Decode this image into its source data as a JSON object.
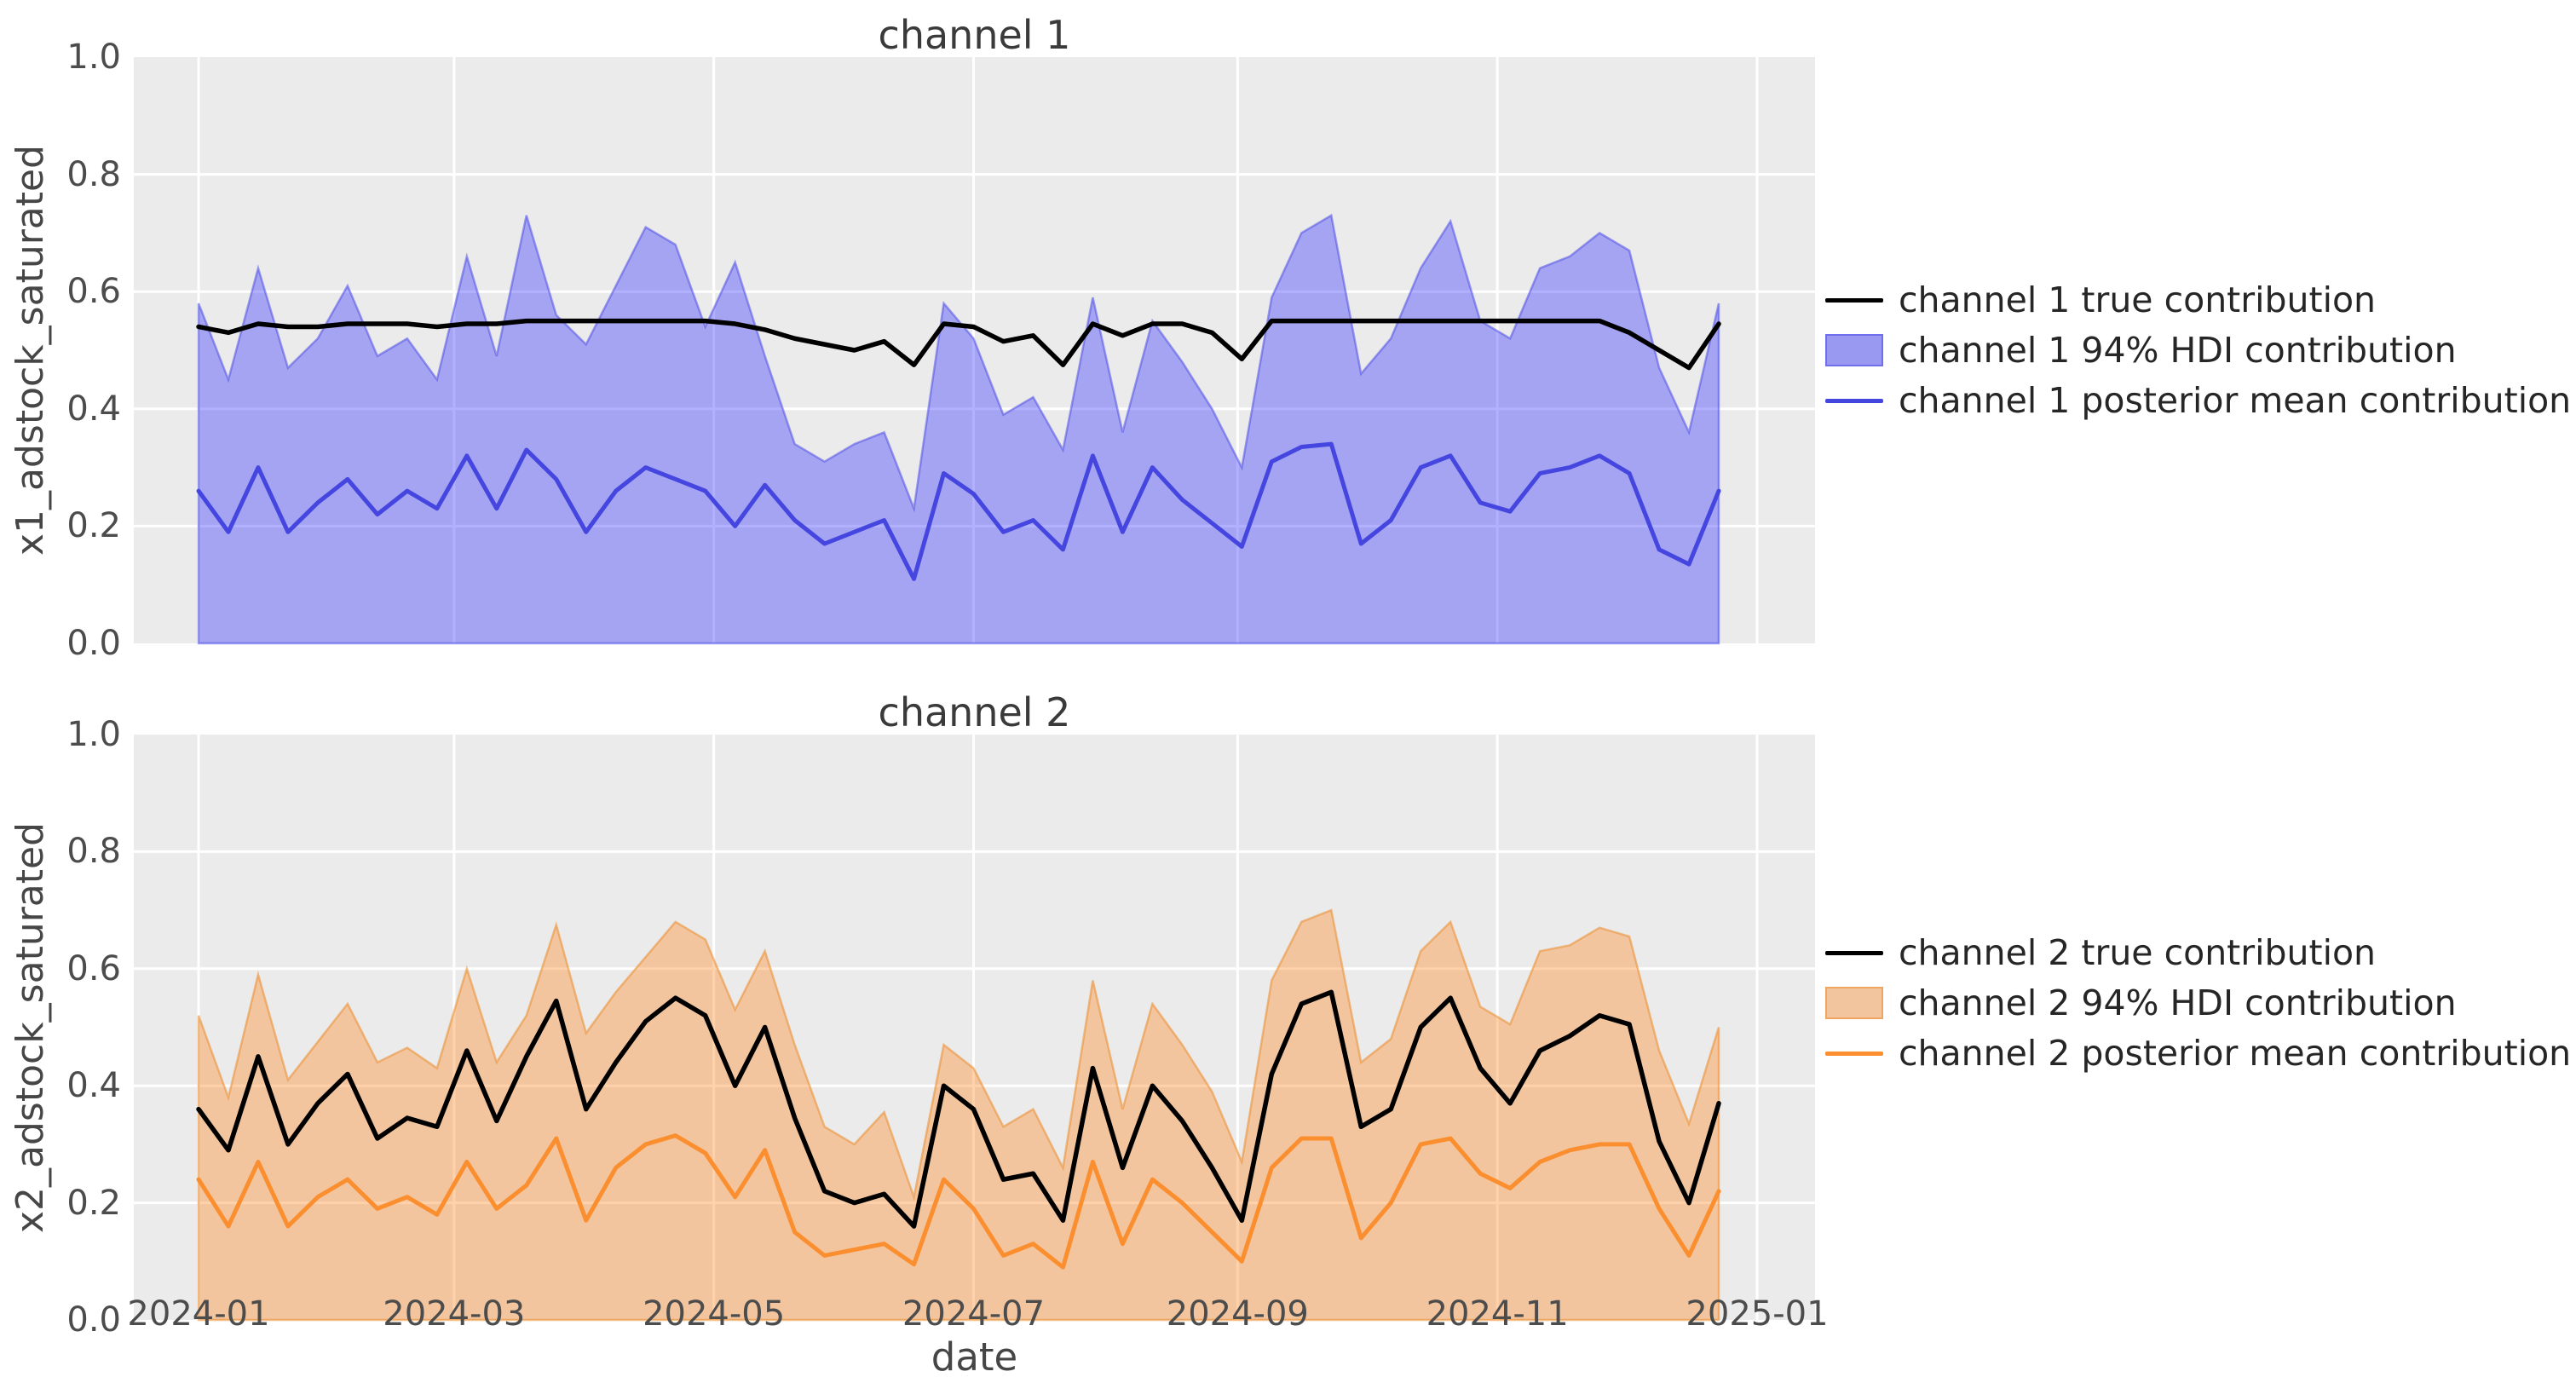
{
  "style": {
    "figure_background": "#ffffff",
    "plot_background": "#ebebeb",
    "grid_color": "#ffffff",
    "title_color": "#3a3a3a",
    "tick_color": "#4c4c4c"
  },
  "xlabel": "date",
  "x_tick_labels": [
    "2024-01",
    "2024-03",
    "2024-05",
    "2024-07",
    "2024-09",
    "2024-11",
    "2025-01"
  ],
  "y_tick_labels": [
    "0.0",
    "0.2",
    "0.4",
    "0.6",
    "0.8",
    "1.0"
  ],
  "charts": [
    {
      "title": "channel 1",
      "ylabel": "x1_adstock_saturated",
      "colors": {
        "true_line": "#000000",
        "band_base": "#1f1fff",
        "band_fill_apparent": "#9999f2",
        "band_edge": "rgba(70,70,230,0.5)",
        "mean_line": "#4545e0"
      },
      "legend": [
        {
          "label": "channel 1 true contribution",
          "type": "line"
        },
        {
          "label": "channel 1 94% HDI contribution",
          "type": "patch"
        },
        {
          "label": "channel 1 posterior mean contribution",
          "type": "line"
        }
      ]
    },
    {
      "title": "channel 2",
      "ylabel": "x2_adstock_saturated",
      "colors": {
        "true_line": "#000000",
        "band_base": "#ff7f0e",
        "band_fill_apparent": "#f2c59e",
        "band_edge": "rgba(235,140,45,0.55)",
        "mean_line": "#fb8e2e"
      },
      "legend": [
        {
          "label": "channel 2 true contribution",
          "type": "line"
        },
        {
          "label": "channel 2 94% HDI contribution",
          "type": "patch"
        },
        {
          "label": "channel 2 posterior mean contribution",
          "type": "line"
        }
      ]
    }
  ],
  "chart_data": [
    {
      "type": "area",
      "title": "channel 1",
      "xlabel": "date",
      "ylabel": "x1_adstock_saturated",
      "ylim": [
        0.0,
        1.0
      ],
      "grid": true,
      "legend_position": "right of axes",
      "x": [
        "2024-01-01",
        "2024-01-08",
        "2024-01-15",
        "2024-01-22",
        "2024-01-29",
        "2024-02-05",
        "2024-02-12",
        "2024-02-19",
        "2024-02-26",
        "2024-03-04",
        "2024-03-11",
        "2024-03-18",
        "2024-03-25",
        "2024-04-01",
        "2024-04-08",
        "2024-04-15",
        "2024-04-22",
        "2024-04-29",
        "2024-05-06",
        "2024-05-13",
        "2024-05-20",
        "2024-05-27",
        "2024-06-03",
        "2024-06-10",
        "2024-06-17",
        "2024-06-24",
        "2024-07-01",
        "2024-07-08",
        "2024-07-15",
        "2024-07-22",
        "2024-07-29",
        "2024-08-05",
        "2024-08-12",
        "2024-08-19",
        "2024-08-26",
        "2024-09-02",
        "2024-09-09",
        "2024-09-16",
        "2024-09-23",
        "2024-09-30",
        "2024-10-07",
        "2024-10-14",
        "2024-10-21",
        "2024-10-28",
        "2024-11-04",
        "2024-11-11",
        "2024-11-18",
        "2024-11-25",
        "2024-12-02",
        "2024-12-09",
        "2024-12-16",
        "2024-12-23"
      ],
      "series": [
        {
          "name": "channel 1 true contribution",
          "values": [
            0.54,
            0.53,
            0.545,
            0.54,
            0.54,
            0.545,
            0.545,
            0.545,
            0.54,
            0.545,
            0.545,
            0.55,
            0.55,
            0.55,
            0.55,
            0.55,
            0.55,
            0.55,
            0.545,
            0.535,
            0.52,
            0.51,
            0.5,
            0.515,
            0.475,
            0.545,
            0.54,
            0.515,
            0.525,
            0.475,
            0.545,
            0.525,
            0.545,
            0.545,
            0.53,
            0.485,
            0.55,
            0.55,
            0.55,
            0.55,
            0.55,
            0.55,
            0.55,
            0.55,
            0.55,
            0.55,
            0.55,
            0.55,
            0.53,
            0.5,
            0.47,
            0.545
          ]
        },
        {
          "name": "channel 1 94% HDI contribution upper bound",
          "values": [
            0.58,
            0.45,
            0.64,
            0.47,
            0.52,
            0.61,
            0.49,
            0.52,
            0.45,
            0.66,
            0.49,
            0.73,
            0.56,
            0.51,
            0.61,
            0.71,
            0.68,
            0.54,
            0.65,
            0.49,
            0.34,
            0.31,
            0.34,
            0.36,
            0.23,
            0.58,
            0.52,
            0.39,
            0.42,
            0.33,
            0.59,
            0.36,
            0.55,
            0.48,
            0.4,
            0.3,
            0.59,
            0.7,
            0.73,
            0.46,
            0.52,
            0.64,
            0.72,
            0.55,
            0.52,
            0.64,
            0.66,
            0.7,
            0.67,
            0.47,
            0.36,
            0.58
          ]
        },
        {
          "name": "channel 1 94% HDI contribution lower bound",
          "values_constant": 0.0
        },
        {
          "name": "channel 1 posterior mean contribution",
          "values": [
            0.26,
            0.19,
            0.3,
            0.19,
            0.24,
            0.28,
            0.22,
            0.26,
            0.23,
            0.32,
            0.23,
            0.33,
            0.28,
            0.19,
            0.26,
            0.3,
            0.28,
            0.26,
            0.2,
            0.27,
            0.21,
            0.17,
            0.19,
            0.21,
            0.11,
            0.29,
            0.255,
            0.19,
            0.21,
            0.16,
            0.32,
            0.19,
            0.3,
            0.245,
            0.205,
            0.165,
            0.31,
            0.335,
            0.34,
            0.17,
            0.21,
            0.3,
            0.32,
            0.24,
            0.225,
            0.29,
            0.3,
            0.32,
            0.29,
            0.16,
            0.135,
            0.26
          ]
        }
      ]
    },
    {
      "type": "area",
      "title": "channel 2",
      "xlabel": "date",
      "ylabel": "x2_adstock_saturated",
      "ylim": [
        0.0,
        1.0
      ],
      "grid": true,
      "legend_position": "right of axes",
      "x": [
        "2024-01-01",
        "2024-01-08",
        "2024-01-15",
        "2024-01-22",
        "2024-01-29",
        "2024-02-05",
        "2024-02-12",
        "2024-02-19",
        "2024-02-26",
        "2024-03-04",
        "2024-03-11",
        "2024-03-18",
        "2024-03-25",
        "2024-04-01",
        "2024-04-08",
        "2024-04-15",
        "2024-04-22",
        "2024-04-29",
        "2024-05-06",
        "2024-05-13",
        "2024-05-20",
        "2024-05-27",
        "2024-06-03",
        "2024-06-10",
        "2024-06-17",
        "2024-06-24",
        "2024-07-01",
        "2024-07-08",
        "2024-07-15",
        "2024-07-22",
        "2024-07-29",
        "2024-08-05",
        "2024-08-12",
        "2024-08-19",
        "2024-08-26",
        "2024-09-02",
        "2024-09-09",
        "2024-09-16",
        "2024-09-23",
        "2024-09-30",
        "2024-10-07",
        "2024-10-14",
        "2024-10-21",
        "2024-10-28",
        "2024-11-04",
        "2024-11-11",
        "2024-11-18",
        "2024-11-25",
        "2024-12-02",
        "2024-12-09",
        "2024-12-16",
        "2024-12-23"
      ],
      "series": [
        {
          "name": "channel 2 true contribution",
          "values": [
            0.36,
            0.29,
            0.45,
            0.3,
            0.37,
            0.42,
            0.31,
            0.345,
            0.33,
            0.46,
            0.34,
            0.45,
            0.545,
            0.36,
            0.44,
            0.51,
            0.55,
            0.52,
            0.4,
            0.5,
            0.345,
            0.22,
            0.2,
            0.215,
            0.16,
            0.4,
            0.36,
            0.24,
            0.25,
            0.17,
            0.43,
            0.26,
            0.4,
            0.34,
            0.26,
            0.17,
            0.42,
            0.54,
            0.56,
            0.33,
            0.36,
            0.5,
            0.55,
            0.43,
            0.37,
            0.46,
            0.485,
            0.52,
            0.505,
            0.305,
            0.2,
            0.37
          ]
        },
        {
          "name": "channel 2 94% HDI contribution upper bound",
          "values": [
            0.52,
            0.38,
            0.59,
            0.41,
            0.475,
            0.54,
            0.44,
            0.465,
            0.43,
            0.6,
            0.44,
            0.52,
            0.675,
            0.49,
            0.56,
            0.62,
            0.68,
            0.65,
            0.53,
            0.63,
            0.47,
            0.33,
            0.3,
            0.355,
            0.21,
            0.47,
            0.43,
            0.33,
            0.36,
            0.26,
            0.58,
            0.36,
            0.54,
            0.47,
            0.39,
            0.27,
            0.58,
            0.68,
            0.7,
            0.44,
            0.48,
            0.63,
            0.68,
            0.535,
            0.505,
            0.63,
            0.64,
            0.67,
            0.655,
            0.46,
            0.335,
            0.5
          ]
        },
        {
          "name": "channel 2 94% HDI contribution lower bound",
          "values_constant": 0.0
        },
        {
          "name": "channel 2 posterior mean contribution",
          "values": [
            0.24,
            0.16,
            0.27,
            0.16,
            0.21,
            0.24,
            0.19,
            0.21,
            0.18,
            0.27,
            0.19,
            0.23,
            0.31,
            0.17,
            0.26,
            0.3,
            0.315,
            0.285,
            0.21,
            0.29,
            0.15,
            0.11,
            0.12,
            0.13,
            0.095,
            0.24,
            0.19,
            0.11,
            0.13,
            0.09,
            0.27,
            0.13,
            0.24,
            0.2,
            0.15,
            0.1,
            0.26,
            0.31,
            0.31,
            0.14,
            0.2,
            0.3,
            0.31,
            0.25,
            0.225,
            0.27,
            0.29,
            0.3,
            0.3,
            0.19,
            0.11,
            0.22
          ]
        }
      ]
    }
  ]
}
